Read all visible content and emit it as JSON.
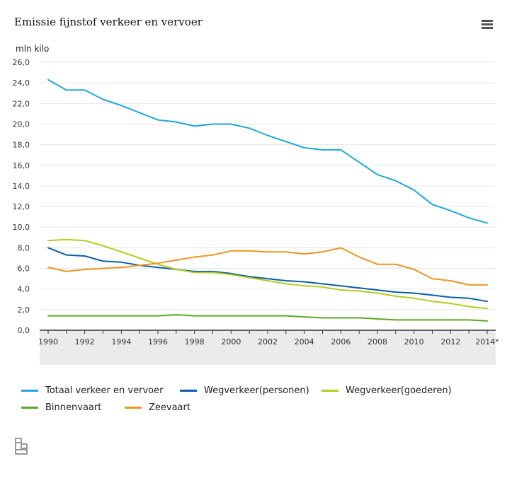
{
  "title": "Emissie fijnstof verkeer en vervoer",
  "menu_icon": "hamburger-menu-icon",
  "logo_icon": "cbs-logo-icon",
  "chart_data": {
    "type": "line",
    "title": "Emissie fijnstof verkeer en vervoer",
    "ylabel": "mln kilo",
    "ylim": [
      0,
      26
    ],
    "yticks": [
      0,
      2,
      4,
      6,
      8,
      10,
      12,
      14,
      16,
      18,
      20,
      22,
      24,
      26
    ],
    "ytick_labels": [
      "0,0",
      "2,0",
      "4,0",
      "6,0",
      "8,0",
      "10,0",
      "12,0",
      "14,0",
      "16,0",
      "18,0",
      "20,0",
      "22,0",
      "24,0",
      "26,0"
    ],
    "x": [
      1990,
      1991,
      1992,
      1993,
      1994,
      1995,
      1996,
      1997,
      1998,
      1999,
      2000,
      2001,
      2002,
      2003,
      2004,
      2005,
      2006,
      2007,
      2008,
      2009,
      2010,
      2011,
      2012,
      2013,
      2014
    ],
    "xtick_labels": [
      "1990",
      "1992",
      "1994",
      "1996",
      "1998",
      "2000",
      "2002",
      "2004",
      "2006",
      "2008",
      "2010",
      "2012",
      "2014*"
    ],
    "xtick_years": [
      1990,
      1992,
      1994,
      1996,
      1998,
      2000,
      2002,
      2004,
      2006,
      2008,
      2010,
      2012,
      2014
    ],
    "grid": true,
    "legend_position": "bottom",
    "series": [
      {
        "name": "Totaal verkeer en vervoer",
        "color": "#1fa8d6",
        "values": [
          24.3,
          23.3,
          23.3,
          22.4,
          21.8,
          21.1,
          20.4,
          20.2,
          19.8,
          20.0,
          20.0,
          19.6,
          18.9,
          18.3,
          17.7,
          17.5,
          17.5,
          16.3,
          15.1,
          14.5,
          13.6,
          12.2,
          11.6,
          10.9,
          10.4
        ]
      },
      {
        "name": "Wegverkeer(personen)",
        "color": "#0b5ea8",
        "values": [
          8.0,
          7.3,
          7.2,
          6.7,
          6.6,
          6.3,
          6.1,
          5.9,
          5.7,
          5.7,
          5.5,
          5.2,
          5.0,
          4.8,
          4.7,
          4.5,
          4.3,
          4.1,
          3.9,
          3.7,
          3.6,
          3.4,
          3.2,
          3.1,
          2.8
        ]
      },
      {
        "name": "Wegverkeer(goederen)",
        "color": "#b3cc1f",
        "values": [
          8.7,
          8.8,
          8.7,
          8.2,
          7.6,
          7.0,
          6.4,
          5.9,
          5.6,
          5.6,
          5.4,
          5.1,
          4.8,
          4.5,
          4.3,
          4.2,
          3.9,
          3.8,
          3.6,
          3.3,
          3.1,
          2.8,
          2.6,
          2.3,
          2.1
        ]
      },
      {
        "name": "Binnenvaart",
        "color": "#5aa81f",
        "values": [
          1.4,
          1.4,
          1.4,
          1.4,
          1.4,
          1.4,
          1.4,
          1.5,
          1.4,
          1.4,
          1.4,
          1.4,
          1.4,
          1.4,
          1.3,
          1.2,
          1.2,
          1.2,
          1.1,
          1.0,
          1.0,
          1.0,
          1.0,
          1.0,
          0.9
        ]
      },
      {
        "name": "Zeevaart",
        "color": "#f0921f",
        "values": [
          6.1,
          5.7,
          5.9,
          6.0,
          6.1,
          6.3,
          6.5,
          6.8,
          7.1,
          7.3,
          7.7,
          7.7,
          7.6,
          7.6,
          7.4,
          7.6,
          8.0,
          7.1,
          6.4,
          6.4,
          5.9,
          5.0,
          4.8,
          4.4,
          4.4
        ]
      }
    ]
  }
}
